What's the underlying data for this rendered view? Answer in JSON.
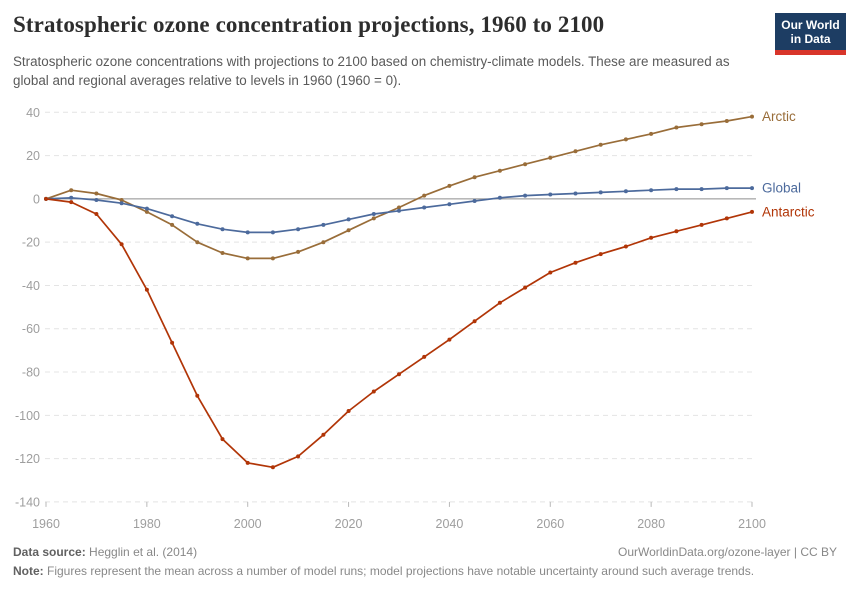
{
  "header": {
    "title": "Stratospheric ozone concentration projections, 1960 to 2100",
    "subtitle": "Stratospheric ozone concentrations with projections to 2100 based on chemistry-climate models. These are measured as global and regional averages relative to levels in 1960 (1960 = 0)."
  },
  "logo": {
    "line1": "Our World",
    "line2": "in Data"
  },
  "chart_data": {
    "type": "line",
    "title": "Stratospheric ozone concentration projections, 1960 to 2100",
    "xlabel": "",
    "ylabel": "",
    "x": [
      1960,
      1965,
      1970,
      1975,
      1980,
      1985,
      1990,
      1995,
      2000,
      2005,
      2010,
      2015,
      2020,
      2025,
      2030,
      2035,
      2040,
      2045,
      2050,
      2055,
      2060,
      2065,
      2070,
      2075,
      2080,
      2085,
      2090,
      2095,
      2100
    ],
    "series": [
      {
        "name": "Arctic",
        "color": "#996D39",
        "values": [
          0,
          4,
          2.5,
          -0.5,
          -6,
          -12,
          -20,
          -25,
          -27.5,
          -27.5,
          -24.5,
          -20,
          -14.5,
          -9,
          -4,
          1.5,
          6,
          10,
          13,
          16,
          19,
          22,
          25,
          27.5,
          30,
          33,
          34.5,
          36,
          38
        ]
      },
      {
        "name": "Global",
        "color": "#4C6A9C",
        "values": [
          0,
          0.5,
          -0.5,
          -2,
          -4.5,
          -8,
          -11.5,
          -14,
          -15.5,
          -15.5,
          -14,
          -12,
          -9.5,
          -7,
          -5.5,
          -4,
          -2.5,
          -1,
          0.5,
          1.5,
          2,
          2.5,
          3,
          3.5,
          4,
          4.5,
          4.5,
          5,
          5
        ]
      },
      {
        "name": "Antarctic",
        "color": "#B13507",
        "values": [
          0,
          -1.5,
          -7,
          -21,
          -42,
          -66.5,
          -91,
          -111,
          -122,
          -124,
          -119,
          -109,
          -98,
          -89,
          -81,
          -73,
          -65,
          -56.5,
          -48,
          -41,
          -34,
          -29.5,
          -25.5,
          -22,
          -18,
          -15,
          -12,
          -9,
          -6
        ]
      }
    ],
    "xlim": [
      1960,
      2100
    ],
    "ylim": [
      -140,
      40
    ],
    "ytick_step": 20,
    "xticks": [
      1960,
      1980,
      2000,
      2020,
      2040,
      2060,
      2080,
      2100
    ],
    "grid": "horizontal dashed",
    "zero_line": true,
    "legend_position": "right end-of-line labels",
    "colors": {
      "grid": "#e4e4e4",
      "zero_line": "#8d8d8d",
      "axis_tick": "#b9b9b9"
    }
  },
  "footer": {
    "source_label": "Data source:",
    "source_text": " Hegglin et al. (2014)",
    "link_text": "OurWorldinData.org/ozone-layer",
    "license_text": " | CC BY",
    "note_label": "Note:",
    "note_text": " Figures represent the mean across a number of model runs; model projections have notable uncertainty around such average trends."
  }
}
